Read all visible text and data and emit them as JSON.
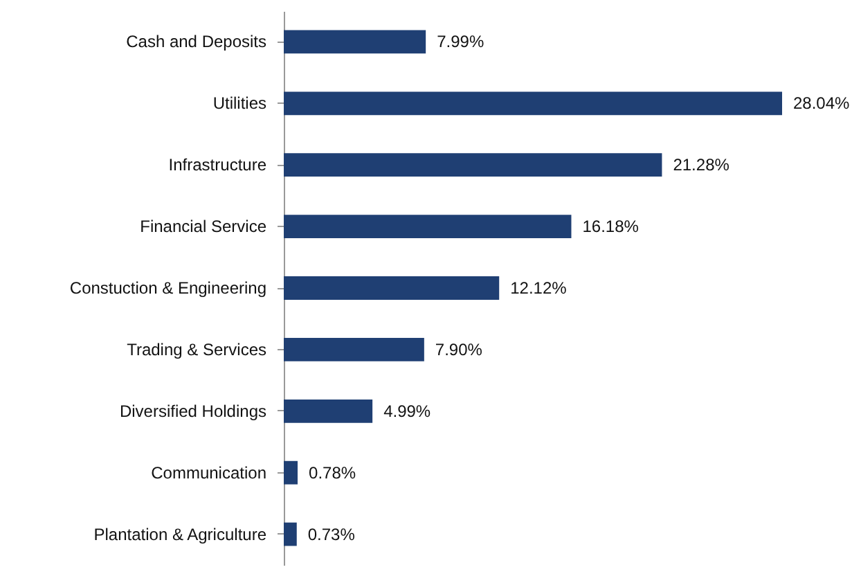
{
  "chart_data": {
    "type": "bar",
    "orientation": "horizontal",
    "categories": [
      "Cash and Deposits",
      "Utilities",
      "Infrastructure",
      "Financial Service",
      "Constuction & Engineering",
      "Trading & Services",
      "Diversified Holdings",
      "Communication",
      "Plantation & Agriculture"
    ],
    "values": [
      7.99,
      28.04,
      21.28,
      16.18,
      12.12,
      7.9,
      4.99,
      0.78,
      0.73
    ],
    "value_labels": [
      "7.99%",
      "28.04%",
      "21.28%",
      "16.18%",
      "12.12%",
      "7.90%",
      "4.99%",
      "0.78%",
      "0.73%"
    ],
    "color": "#1f3f73"
  }
}
